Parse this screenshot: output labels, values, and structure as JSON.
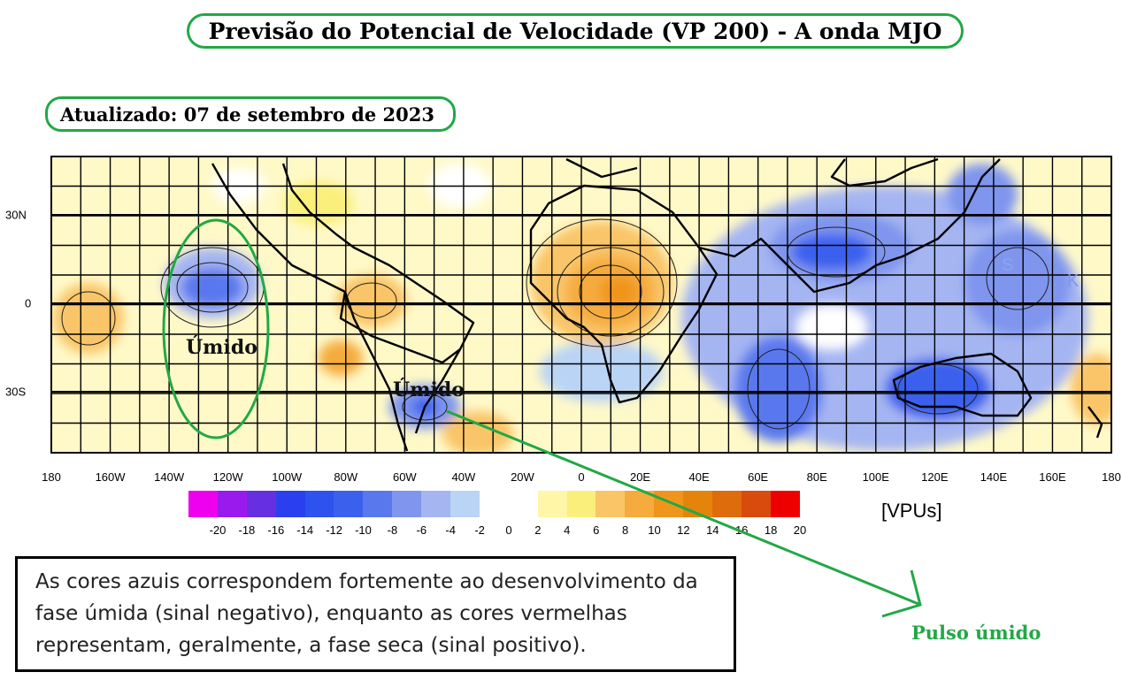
{
  "header": {
    "title": "Previsão do Potencial de Velocidade (VP 200) - A onda MJO",
    "updated": "Atualizado: 07 de setembro de 2023"
  },
  "map": {
    "lon_labels": [
      "180",
      "160W",
      "140W",
      "120W",
      "100W",
      "80W",
      "60W",
      "40W",
      "20W",
      "0",
      "20E",
      "40E",
      "60E",
      "80E",
      "100E",
      "120E",
      "140E",
      "160E",
      "180"
    ],
    "lat_labels": [
      "30N",
      "0",
      "30S"
    ],
    "annotation_wet_1": "Úmido",
    "annotation_wet_2": "Úmido",
    "annotation_pulse": "Pulso úmido",
    "storm_marks": [
      "S",
      "K"
    ]
  },
  "legend": {
    "units": "[VPUs]",
    "tick_labels": [
      "-20",
      "-18",
      "-16",
      "-14",
      "-12",
      "-10",
      "-8",
      "-6",
      "-4",
      "-2",
      "0",
      "2",
      "4",
      "6",
      "8",
      "10",
      "12",
      "14",
      "16",
      "18",
      "20"
    ],
    "colors": [
      "#ee00ee",
      "#9a1aee",
      "#6630e0",
      "#2a40ee",
      "#2e52ee",
      "#3b60ee",
      "#5a78ee",
      "#7f95ee",
      "#a5b5f2",
      "#b9d4f5",
      "#ffffff",
      "#ffffff",
      "#fff6a8",
      "#fbef7c",
      "#f9c567",
      "#f5ab3d",
      "#f0951c",
      "#e5840a",
      "#de6c0c",
      "#d94a0d",
      "#ee0000"
    ]
  },
  "note": {
    "text": "As cores azuis correspondem fortemente ao desenvolvimento da fase úmida (sinal negativo), enquanto as cores vermelhas representam, geralmente, a fase seca (sinal positivo)."
  },
  "accent_color": "#22a845"
}
